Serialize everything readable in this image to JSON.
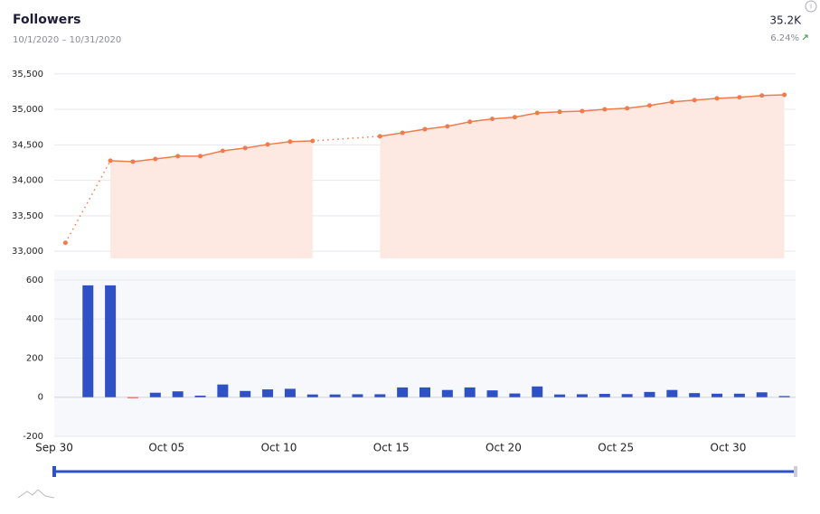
{
  "header": {
    "title": "Followers",
    "subtitle": "10/1/2020 – 10/31/2020",
    "total": "35.2K",
    "change": "6.24%"
  },
  "chart_data": [
    {
      "type": "line",
      "color": "#f07c4c",
      "area_color": "#fde9e2",
      "values": [
        33120,
        null,
        34276,
        34263,
        34300,
        34340,
        34340,
        34415,
        34455,
        34505,
        34545,
        34555,
        null,
        null,
        34620,
        34670,
        34720,
        34760,
        34825,
        34865,
        34890,
        34950,
        34965,
        34975,
        35000,
        35015,
        35055,
        35105,
        35130,
        35155,
        35170,
        35195,
        35205
      ],
      "ylim": [
        32900,
        35650
      ],
      "yticks": [
        {
          "value": 33000,
          "label": "33,000"
        },
        {
          "value": 33500,
          "label": "33,500"
        },
        {
          "value": 34000,
          "label": "34,000"
        },
        {
          "value": 34500,
          "label": "34,500"
        },
        {
          "value": 35000,
          "label": "35,000"
        },
        {
          "value": 35500,
          "label": "35,500"
        }
      ],
      "grid": true
    },
    {
      "type": "bar",
      "color": "#2f51c6",
      "negative_color": "#e8503a",
      "categories": [
        "Sep 30",
        null,
        null,
        null,
        null,
        "Oct 05",
        null,
        null,
        null,
        null,
        "Oct 10",
        null,
        null,
        null,
        null,
        "Oct 15",
        null,
        null,
        null,
        null,
        "Oct 20",
        null,
        null,
        null,
        null,
        "Oct 25",
        null,
        null,
        null,
        null,
        "Oct 30",
        null,
        null
      ],
      "values": [
        null,
        572,
        572,
        -4,
        23,
        30,
        8,
        65,
        32,
        40,
        43,
        14,
        14,
        15,
        15,
        50,
        50,
        37,
        50,
        35,
        19,
        55,
        14,
        15,
        17,
        16,
        27,
        37,
        21,
        18,
        18,
        25,
        6
      ],
      "ylim": [
        -200,
        650
      ],
      "yticks": [
        -200,
        0,
        200,
        400,
        600
      ],
      "grid": true
    }
  ]
}
